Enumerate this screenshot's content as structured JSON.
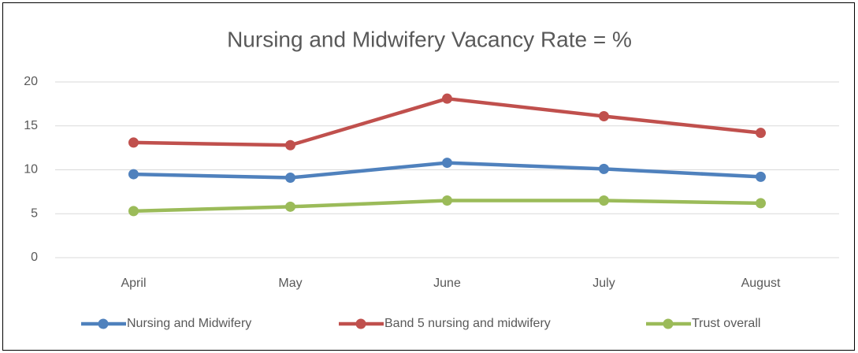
{
  "chart_data": {
    "type": "line",
    "title": "Nursing and Midwifery Vacancy Rate = %",
    "categories": [
      "April",
      "May",
      "June",
      "July",
      "August"
    ],
    "series": [
      {
        "name": "Nursing and Midwifery",
        "color": "#4f81bd",
        "values": [
          9.5,
          9.1,
          10.8,
          10.1,
          9.2
        ]
      },
      {
        "name": "Band 5 nursing and midwifery",
        "color": "#c0504d",
        "values": [
          13.1,
          12.8,
          18.1,
          16.1,
          14.2
        ]
      },
      {
        "name": "Trust overall",
        "color": "#9bbb59",
        "values": [
          5.3,
          5.8,
          6.5,
          6.5,
          6.2
        ]
      }
    ],
    "ylim": [
      0,
      20
    ],
    "yticks": [
      0,
      5,
      10,
      15,
      20
    ],
    "grid": true,
    "legend": "bottom"
  }
}
